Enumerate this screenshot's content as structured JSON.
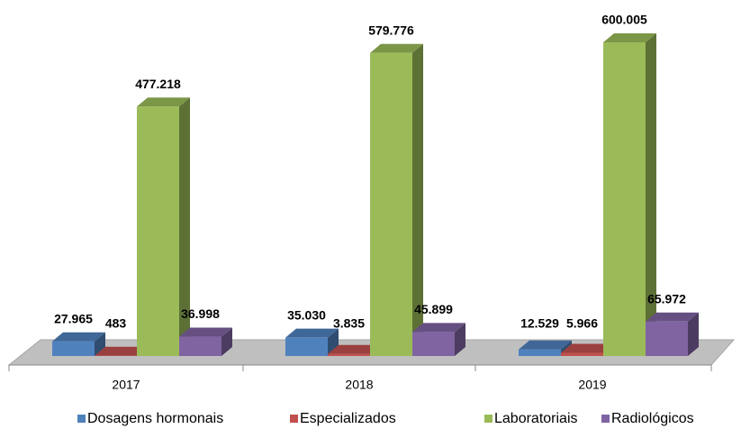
{
  "chart_data": {
    "type": "bar3d",
    "categories": [
      "2017",
      "2018",
      "2019"
    ],
    "series": [
      {
        "name": "Dosagens hormonais",
        "color": "#4f81bd",
        "values": [
          27965,
          35030,
          12529
        ],
        "value_labels": [
          "27.965",
          "35.030",
          "12.529"
        ]
      },
      {
        "name": "Especializados",
        "color": "#c0504d",
        "values": [
          483,
          3835,
          5966
        ],
        "value_labels": [
          "483",
          "3.835",
          "5.966"
        ]
      },
      {
        "name": "Laboratoriais",
        "color": "#9bbb59",
        "values": [
          477218,
          579776,
          600005
        ],
        "value_labels": [
          "477.218",
          "579.776",
          "600.005"
        ]
      },
      {
        "name": "Radiológicos",
        "color": "#8064a2",
        "values": [
          36998,
          45899,
          65972
        ],
        "value_labels": [
          "36.998",
          "45.899",
          "65.972"
        ]
      }
    ]
  }
}
